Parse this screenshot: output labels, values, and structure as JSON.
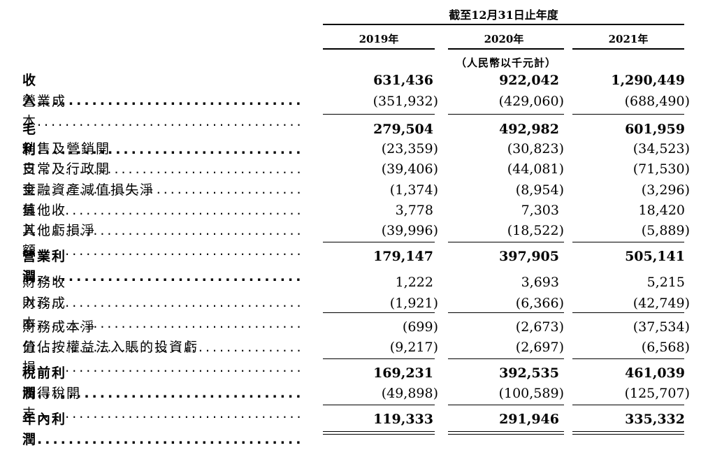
{
  "header": {
    "period": "截至12月31日止年度",
    "years": [
      "2019年",
      "2020年",
      "2021年"
    ],
    "unit": "（人民幣以千元計）"
  },
  "rows": [
    {
      "label": "收入",
      "bold": true,
      "values": [
        "631,436",
        "922,042",
        "1,290,449"
      ]
    },
    {
      "label": "營業成本",
      "bold": false,
      "values": [
        "(351,932)",
        "(429,060)",
        "(688,490)"
      ]
    },
    {
      "label": "毛利",
      "bold": true,
      "values": [
        "279,504",
        "492,982",
        "601,959"
      ]
    },
    {
      "label": "銷售及營銷開支",
      "bold": false,
      "values": [
        "(23,359)",
        "(30,823)",
        "(34,523)"
      ]
    },
    {
      "label": "日常及行政開支",
      "bold": false,
      "values": [
        "(39,406)",
        "(44,081)",
        "(71,530)"
      ]
    },
    {
      "label": "金融資產減值損失淨值",
      "bold": false,
      "values": [
        "(1,374)",
        "(8,954)",
        "(3,296)"
      ]
    },
    {
      "label": "其他收入",
      "bold": false,
      "values": [
        "3,778",
        "7,303",
        "18,420"
      ]
    },
    {
      "label": "其他虧損淨額",
      "bold": false,
      "values": [
        "(39,996)",
        "(18,522)",
        "(5,889)"
      ]
    },
    {
      "label": "營業利潤",
      "bold": true,
      "values": [
        "179,147",
        "397,905",
        "505,141"
      ]
    },
    {
      "label": "財務收入",
      "bold": false,
      "values": [
        "1,222",
        "3,693",
        "5,215"
      ]
    },
    {
      "label": "財務成本",
      "bold": false,
      "values": [
        "(1,921)",
        "(6,366)",
        "(42,749)"
      ]
    },
    {
      "label": "財務成本淨值",
      "bold": false,
      "values": [
        "(699)",
        "(2,673)",
        "(37,534)"
      ]
    },
    {
      "label": "分佔按權益法入賬的投資虧損",
      "bold": false,
      "values": [
        "(9,217)",
        "(2,697)",
        "(6,568)"
      ]
    },
    {
      "label": "稅前利潤",
      "bold": true,
      "values": [
        "169,231",
        "392,535",
        "461,039"
      ]
    },
    {
      "label": "所得稅開支",
      "bold": false,
      "values": [
        "(49,898)",
        "(100,589)",
        "(125,707)"
      ]
    },
    {
      "label": "年內利潤",
      "bold": true,
      "values": [
        "119,333",
        "291,946",
        "335,332"
      ]
    }
  ]
}
